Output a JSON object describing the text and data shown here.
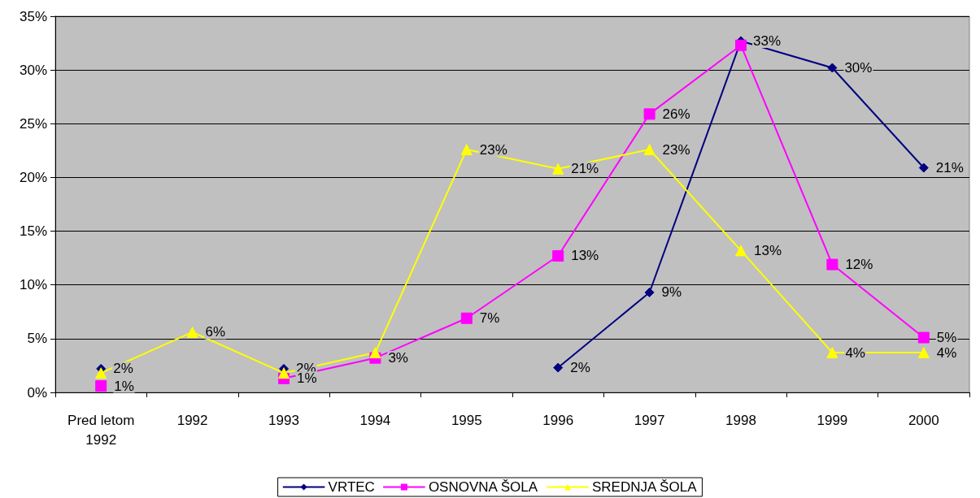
{
  "chart_data": {
    "type": "line",
    "categories": [
      "Pred letom\n1992",
      "1992",
      "1993",
      "1994",
      "1995",
      "1996",
      "1997",
      "1998",
      "1999",
      "2000"
    ],
    "ylim": [
      0,
      35
    ],
    "yticks": [
      {
        "value": 0,
        "label": "0%"
      },
      {
        "value": 5,
        "label": "5%"
      },
      {
        "value": 10,
        "label": "10%"
      },
      {
        "value": 15,
        "label": "15%"
      },
      {
        "value": 20,
        "label": "20%"
      },
      {
        "value": 25,
        "label": "25%"
      },
      {
        "value": 30,
        "label": "30%"
      },
      {
        "value": 35,
        "label": "35%"
      }
    ],
    "grid": "y",
    "legend": "bottom",
    "line_style": "solid",
    "series": [
      {
        "name": "VRTEC",
        "color": "#000080",
        "marker": "diamond",
        "values": [
          2.2,
          null,
          2.2,
          null,
          null,
          2.3,
          9.3,
          32.7,
          30.2,
          20.9
        ],
        "value_labels": [
          "2%",
          null,
          "2%",
          null,
          null,
          "2%",
          "9%",
          "33%",
          "30%",
          "21%"
        ]
      },
      {
        "name": "OSNOVNA ŠOLA",
        "color": "#ff00ff",
        "marker": "square",
        "values": [
          0.6,
          null,
          1.3,
          3.2,
          6.9,
          12.7,
          25.9,
          32.3,
          11.9,
          5.1
        ],
        "value_labels": [
          "1%",
          null,
          "1%",
          "3%",
          "7%",
          "13%",
          "26%",
          null,
          "12%",
          "5%"
        ]
      },
      {
        "name": "SREDNJA ŠOLA",
        "color": "#ffff00",
        "marker": "triangle",
        "values": [
          1.8,
          5.6,
          1.8,
          3.7,
          22.6,
          20.8,
          22.6,
          13.2,
          3.7,
          3.7
        ],
        "value_labels": [
          null,
          "6%",
          null,
          null,
          "23%",
          "21%",
          "23%",
          "13%",
          "4%",
          "4%"
        ]
      }
    ]
  }
}
